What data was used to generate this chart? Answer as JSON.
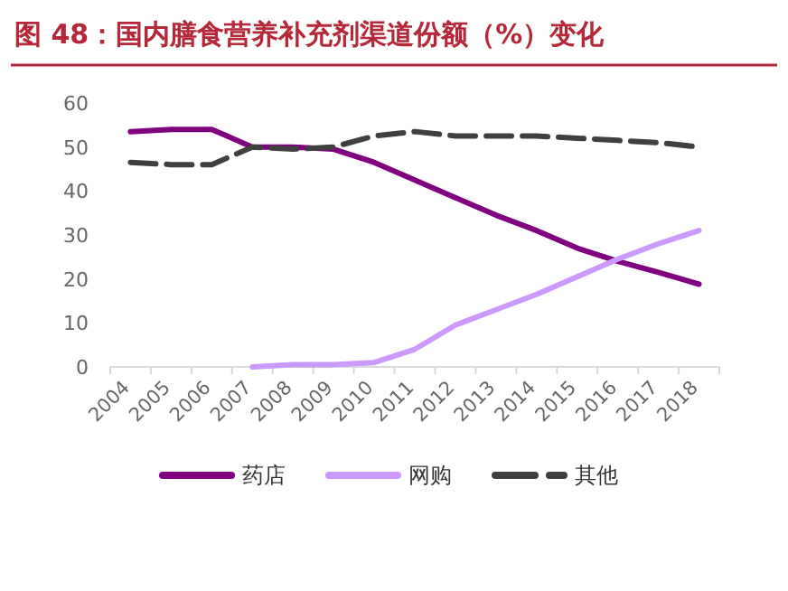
{
  "chart_data": {
    "type": "line",
    "title": "图 48：国内膳食营养补充剂渠道份额（%）变化",
    "categories": [
      "2004",
      "2005",
      "2006",
      "2007",
      "2008",
      "2009",
      "2010",
      "2011",
      "2012",
      "2013",
      "2014",
      "2015",
      "2016",
      "2017",
      "2018"
    ],
    "series": [
      {
        "name": "药店",
        "color": "#800080",
        "values": [
          53.5,
          54,
          54,
          50,
          50,
          49.5,
          46.5,
          42.5,
          38.5,
          34.5,
          31,
          27,
          24,
          21.5,
          18.8
        ]
      },
      {
        "name": "网购",
        "color": "#cc99ff",
        "values": [
          null,
          null,
          null,
          0,
          0.5,
          0.5,
          1,
          4,
          9.5,
          13,
          16.5,
          20.5,
          24.5,
          28,
          31
        ]
      },
      {
        "name": "其他",
        "color": "#404040",
        "line_style": "dashed",
        "values": [
          46.5,
          46,
          46,
          50,
          49.5,
          50,
          52.5,
          53.5,
          52.5,
          52.5,
          52.5,
          52,
          51.5,
          51,
          50
        ]
      }
    ],
    "ylim": [
      0,
      60
    ],
    "yticks": [
      0,
      10,
      20,
      30,
      40,
      50,
      60
    ],
    "grid": false,
    "legend": "bottom",
    "marker": "none",
    "line_style": "solid"
  }
}
